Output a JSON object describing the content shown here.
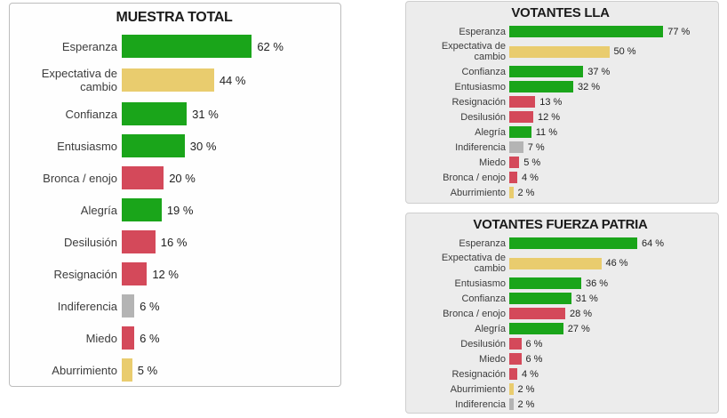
{
  "palette": {
    "green": "#1AA51A",
    "yellow": "#E9CC6E",
    "red": "#D4495A",
    "gray": "#B4B4B4"
  },
  "chart_data": [
    {
      "type": "bar",
      "orientation": "horizontal",
      "title": "MUESTRA TOTAL",
      "unit": "%",
      "xlim": [
        0,
        100
      ],
      "grid": false,
      "legend": false,
      "categories": [
        "Esperanza",
        "Expectativa de cambio",
        "Confianza",
        "Entusiasmo",
        "Bronca / enojo",
        "Alegría",
        "Desilusión",
        "Resignación",
        "Indiferencia",
        "Miedo",
        "Aburrimiento"
      ],
      "values": [
        62,
        44,
        31,
        30,
        20,
        19,
        16,
        12,
        6,
        6,
        5
      ],
      "value_labels": [
        "62 %",
        "44 %",
        "31 %",
        "30 %",
        "20 %",
        "19 %",
        "16 %",
        "12 %",
        "6 %",
        "6 %",
        "5 %"
      ],
      "colors": [
        "green",
        "yellow",
        "green",
        "green",
        "red",
        "green",
        "red",
        "red",
        "gray",
        "red",
        "yellow"
      ]
    },
    {
      "type": "bar",
      "orientation": "horizontal",
      "title": "VOTANTES LLA",
      "unit": "%",
      "xlim": [
        0,
        100
      ],
      "grid": false,
      "legend": false,
      "categories": [
        "Esperanza",
        "Expectativa de cambio",
        "Confianza",
        "Entusiasmo",
        "Resignación",
        "Desilusión",
        "Alegría",
        "Indiferencia",
        "Miedo",
        "Bronca / enojo",
        "Aburrimiento"
      ],
      "values": [
        77,
        50,
        37,
        32,
        13,
        12,
        11,
        7,
        5,
        4,
        2
      ],
      "value_labels": [
        "77 %",
        "50 %",
        "37 %",
        "32 %",
        "13 %",
        "12 %",
        "11 %",
        "7 %",
        "5 %",
        "4 %",
        "2 %"
      ],
      "colors": [
        "green",
        "yellow",
        "green",
        "green",
        "red",
        "red",
        "green",
        "gray",
        "red",
        "red",
        "yellow"
      ]
    },
    {
      "type": "bar",
      "orientation": "horizontal",
      "title": "VOTANTES FUERZA PATRIA",
      "unit": "%",
      "xlim": [
        0,
        100
      ],
      "grid": false,
      "legend": false,
      "categories": [
        "Esperanza",
        "Expectativa de cambio",
        "Entusiasmo",
        "Confianza",
        "Bronca / enojo",
        "Alegría",
        "Desilusión",
        "Miedo",
        "Resignación",
        "Aburrimiento",
        "Indiferencia"
      ],
      "values": [
        64,
        46,
        36,
        31,
        28,
        27,
        6,
        6,
        4,
        2,
        2
      ],
      "value_labels": [
        "64 %",
        "46 %",
        "36 %",
        "31 %",
        "28 %",
        "27 %",
        "6 %",
        "6 %",
        "4 %",
        "2 %",
        "2 %"
      ],
      "colors": [
        "green",
        "yellow",
        "green",
        "green",
        "red",
        "green",
        "red",
        "red",
        "red",
        "yellow",
        "gray"
      ]
    }
  ]
}
